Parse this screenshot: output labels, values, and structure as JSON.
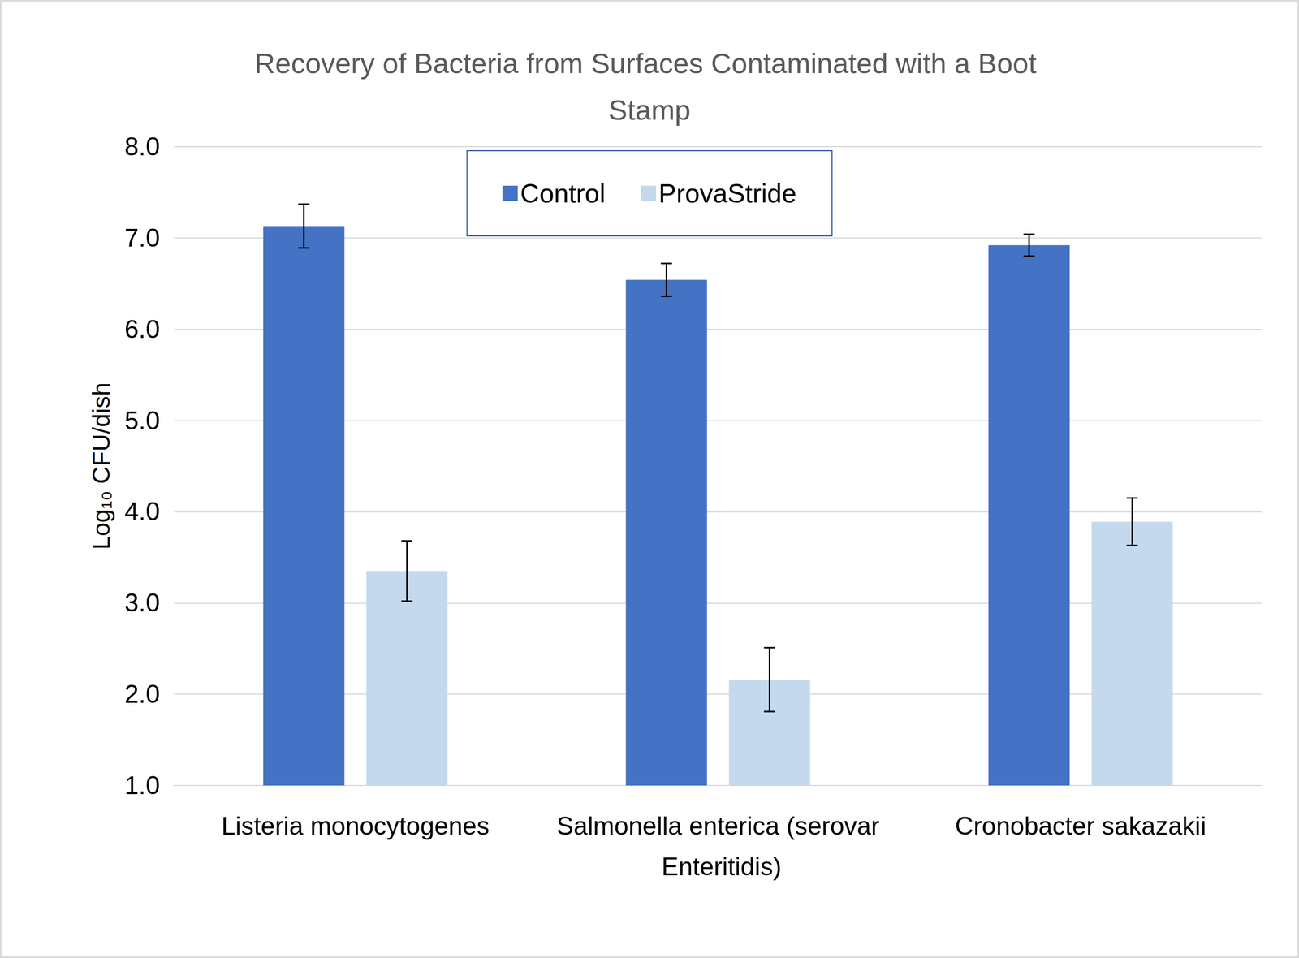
{
  "chart_data": {
    "type": "bar",
    "title": "Recovery of Bacteria from Surfaces Contaminated with a Boot Stamp",
    "y_label": "Log₁₀ CFU/dish",
    "categories": [
      "Listeria monocytogenes",
      "Salmonella enterica (serovar Enteritidis)",
      "Cronobacter sakazakii"
    ],
    "series": [
      {
        "name": "Control",
        "color": "#4472c4",
        "values": [
          7.13,
          6.54,
          6.92
        ],
        "errors": [
          0.24,
          0.18,
          0.12
        ]
      },
      {
        "name": "ProvaStride",
        "color": "#c5d9ee",
        "values": [
          3.35,
          2.16,
          3.89
        ],
        "errors": [
          0.33,
          0.35,
          0.26
        ]
      }
    ],
    "ylim": [
      1,
      8
    ],
    "yticks": [
      {
        "value": 1,
        "label": "1.0"
      },
      {
        "value": 2,
        "label": "2.0"
      },
      {
        "value": 3,
        "label": "3.0"
      },
      {
        "value": 4,
        "label": "4.0"
      },
      {
        "value": 5,
        "label": "5.0"
      },
      {
        "value": 6,
        "label": "6.0"
      },
      {
        "value": 7,
        "label": "7.0"
      },
      {
        "value": 8,
        "label": "8.0"
      }
    ],
    "grid": true,
    "legend": "top"
  }
}
